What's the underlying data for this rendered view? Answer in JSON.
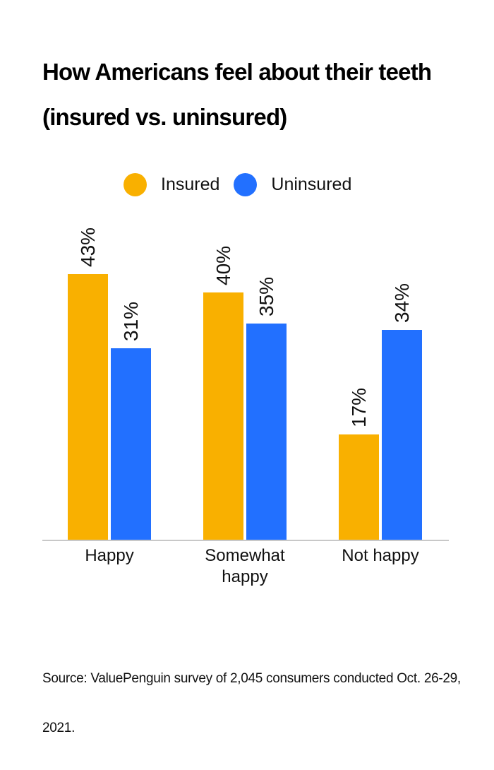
{
  "title": "How Americans feel about their teeth (insured vs. uninsured)",
  "legend": [
    {
      "label": "Insured",
      "color": "#F9B000"
    },
    {
      "label": "Uninsured",
      "color": "#2270FF"
    }
  ],
  "source": "Source: ValuePenguin survey of 2,045 consumers conducted Oct. 26-29, 2021.",
  "chart_data": {
    "type": "bar",
    "title": "How Americans feel about their teeth (insured vs. uninsured)",
    "categories": [
      "Happy",
      "Somewhat happy",
      "Not happy"
    ],
    "series": [
      {
        "name": "Insured",
        "color": "#F9B000",
        "values": [
          43,
          40,
          17
        ],
        "labels": [
          "43%",
          "40%",
          "17%"
        ]
      },
      {
        "name": "Uninsured",
        "color": "#2270FF",
        "values": [
          31,
          35,
          34
        ],
        "labels": [
          "31%",
          "35%",
          "34%"
        ]
      }
    ],
    "xlabel": "",
    "ylabel": "",
    "ylim": [
      0,
      45
    ],
    "grid": false,
    "legend_position": "top",
    "data_labels": "rotated -90°, above bars",
    "source": "Source: ValuePenguin survey of 2,045 consumers conducted Oct. 26-29, 2021."
  }
}
